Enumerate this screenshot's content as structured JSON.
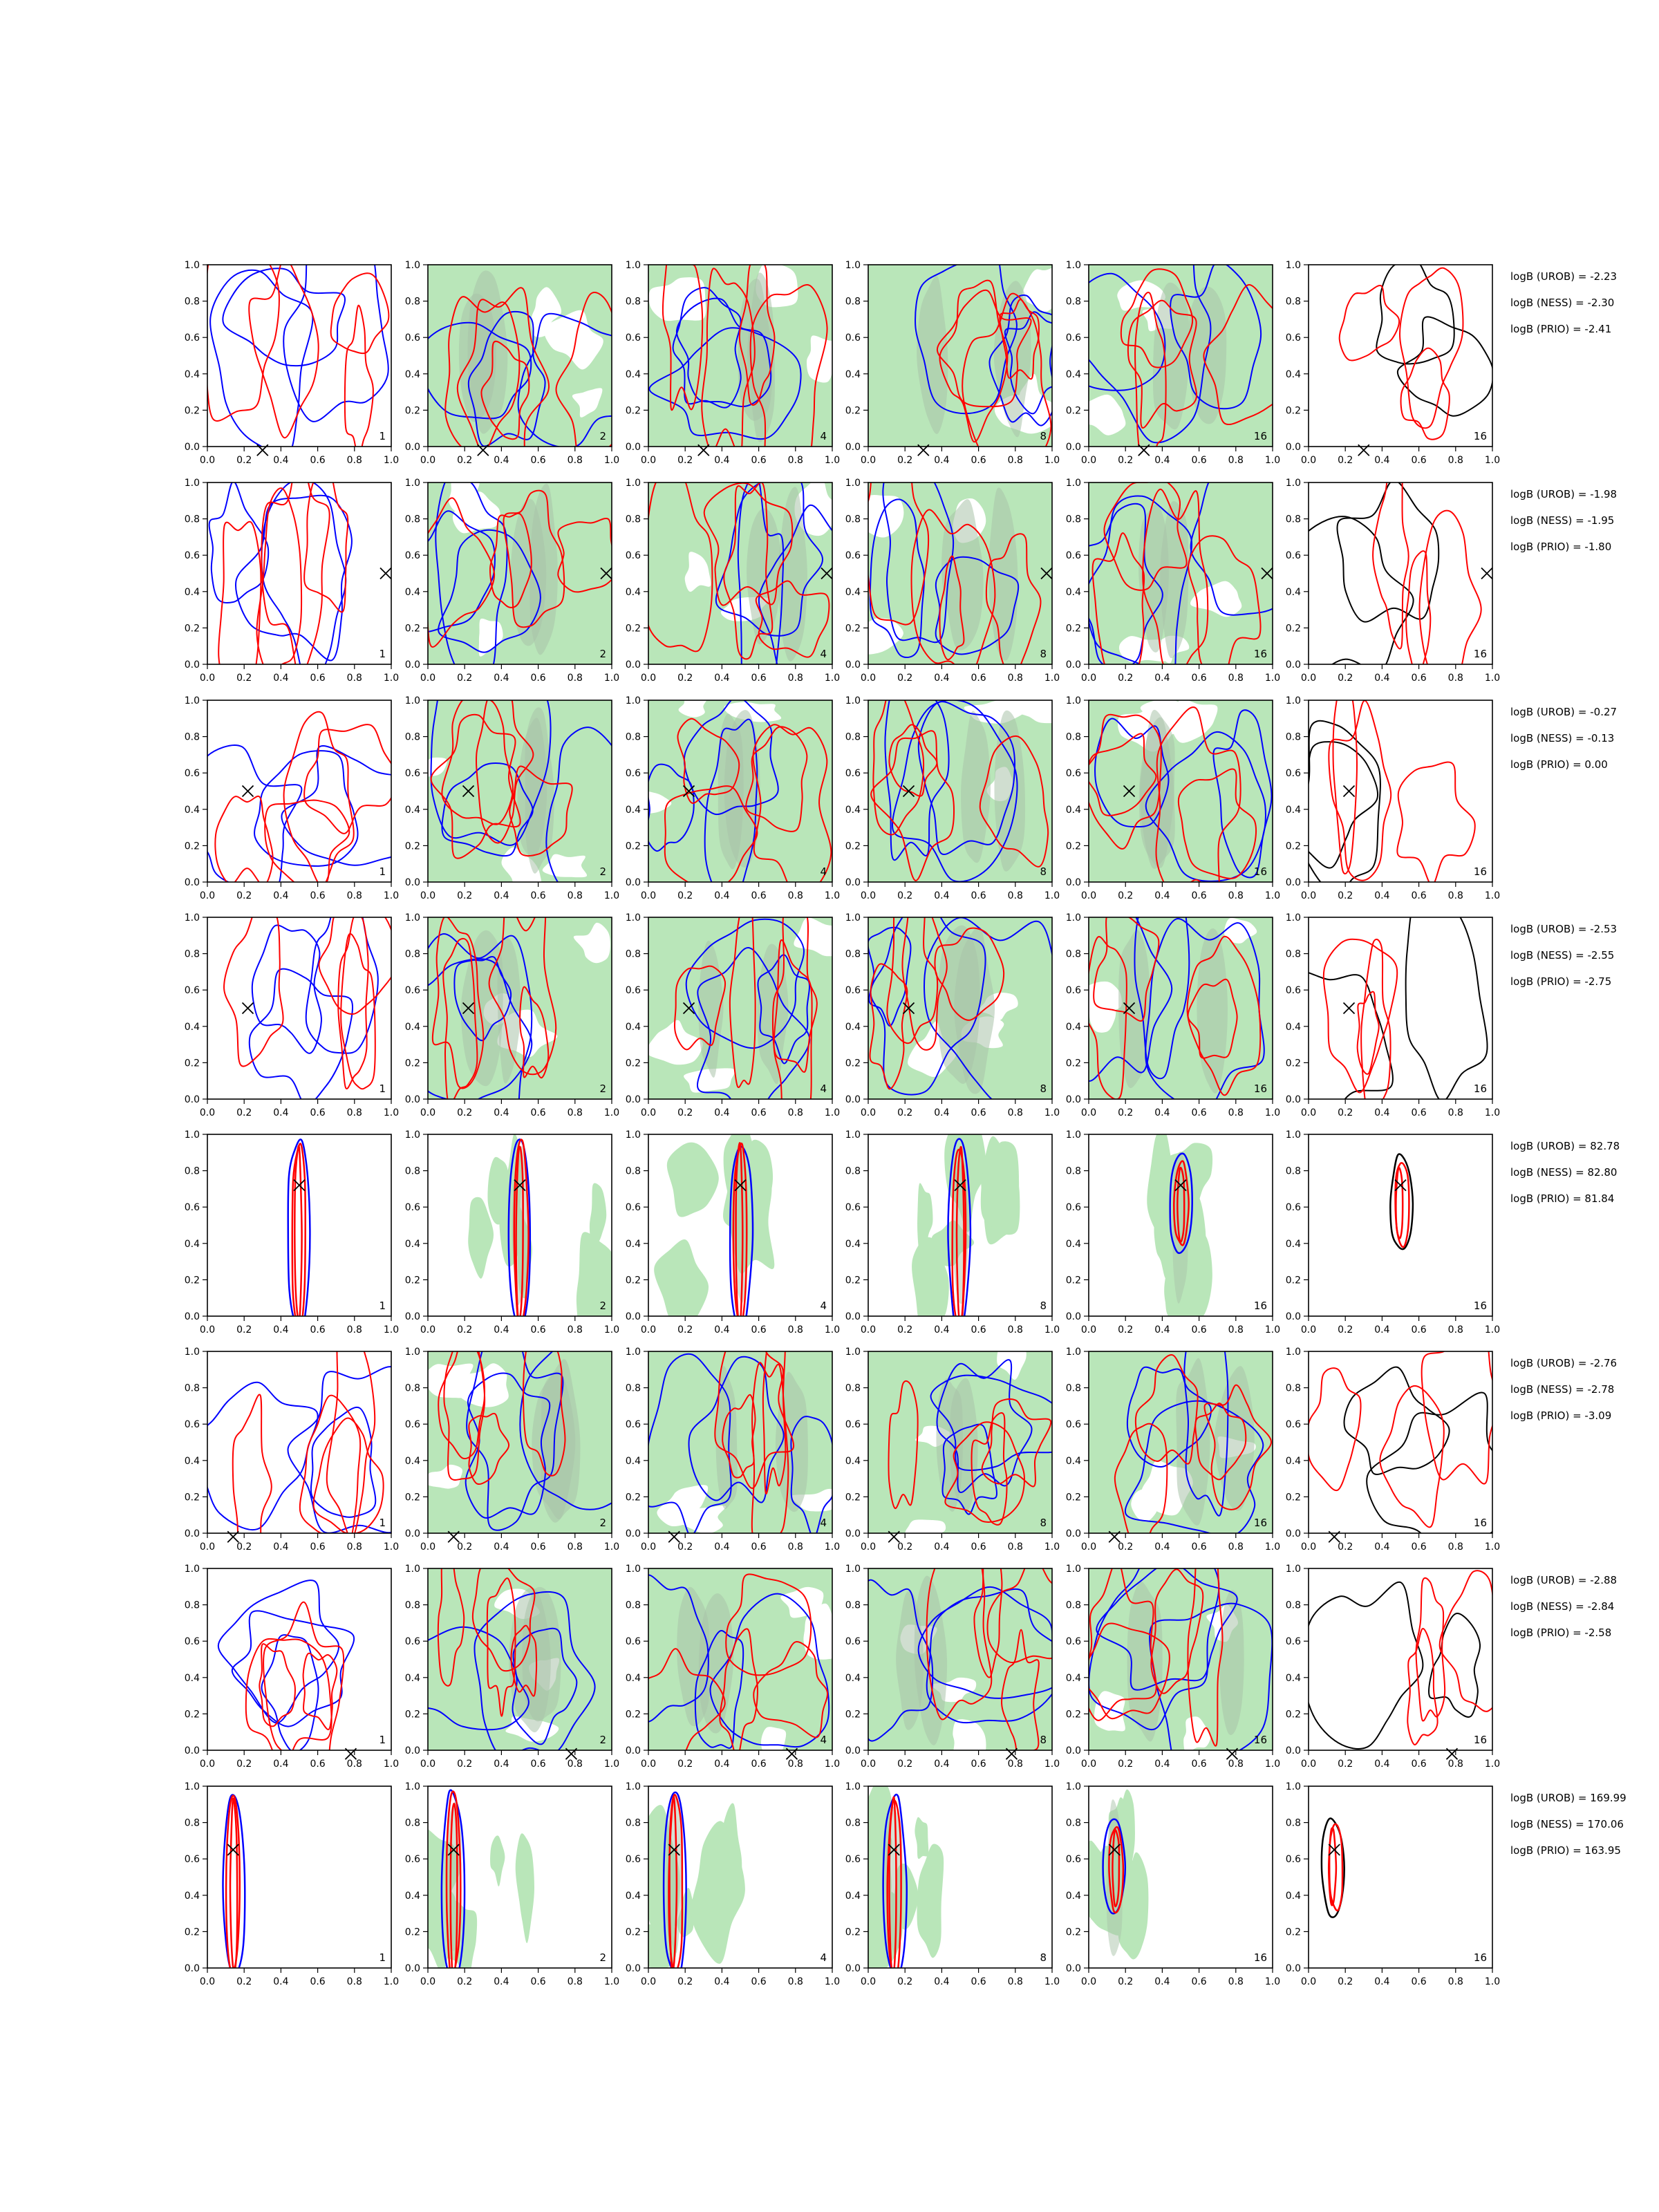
{
  "chart_data": {
    "type": "contour-grid",
    "rows": 8,
    "cols": 6,
    "xlim": [
      0,
      1
    ],
    "ylim": [
      0,
      1
    ],
    "x_ticks": [
      "0.0",
      "0.2",
      "0.4",
      "0.6",
      "0.8",
      "1.0"
    ],
    "y_ticks": [
      "0.0",
      "0.2",
      "0.4",
      "0.6",
      "0.8",
      "1.0"
    ],
    "panel_labels": [
      "1",
      "2",
      "4",
      "8",
      "16",
      "16"
    ],
    "colors": {
      "blue": "#0000ff",
      "red": "#ff0000",
      "black": "#000000",
      "fill": "#b9e6b9",
      "fill_dark": "#a9c3a9"
    },
    "rows_data": [
      {
        "marker": [
          0.3,
          -0.02
        ],
        "stats": [
          "logB (UROB) = -2.23",
          "logB (NESS) = -2.30",
          "logB (PRIO) = -2.41"
        ]
      },
      {
        "marker": [
          0.97,
          0.5
        ],
        "stats": [
          "logB (UROB) = -1.98",
          "logB (NESS) = -1.95",
          "logB (PRIO) = -1.80"
        ]
      },
      {
        "marker": [
          0.22,
          0.5
        ],
        "stats": [
          "logB (UROB) = -0.27",
          "logB (NESS) = -0.13",
          "logB (PRIO) = 0.00"
        ]
      },
      {
        "marker": [
          0.22,
          0.5
        ],
        "stats": [
          "logB (UROB) = -2.53",
          "logB (NESS) = -2.55",
          "logB (PRIO) = -2.75"
        ]
      },
      {
        "marker": [
          0.5,
          0.72
        ],
        "stats": [
          "logB (UROB) = 82.78",
          "logB (NESS) = 82.80",
          "logB (PRIO) = 81.84"
        ]
      },
      {
        "marker": [
          0.14,
          -0.02
        ],
        "stats": [
          "logB (UROB) = -2.76",
          "logB (NESS) = -2.78",
          "logB (PRIO) = -3.09"
        ]
      },
      {
        "marker": [
          0.78,
          -0.02
        ],
        "stats": [
          "logB (UROB) = -2.88",
          "logB (NESS) = -2.84",
          "logB (PRIO) = -2.58"
        ]
      },
      {
        "marker": [
          0.14,
          0.65
        ],
        "stats": [
          "logB (UROB) = 169.99",
          "logB (NESS) = 170.06",
          "logB (PRIO) = 163.95"
        ]
      }
    ]
  }
}
